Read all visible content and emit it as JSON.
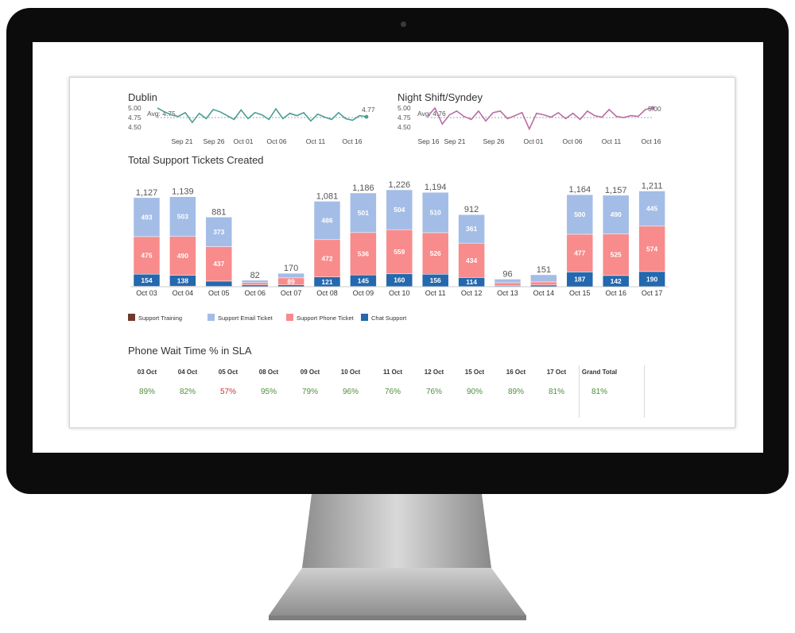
{
  "colors": {
    "training": "#6e3a2c",
    "email": "#a3bde7",
    "phone": "#f88b8b",
    "chat": "#2468ae",
    "spark_dublin": "#4a9d95",
    "spark_sydney": "#b86ea5",
    "good": "#4f8f3f",
    "bad": "#c63a3a"
  },
  "sparklines": [
    {
      "title": "Dublin",
      "avg_label": "Avg: 4.75",
      "last_label": "4.77",
      "yticks": [
        "5.00",
        "4.75",
        "4.50"
      ],
      "x_labels": [
        "Sep 21",
        "Sep 26",
        "Oct 01",
        "Oct 06",
        "Oct 11",
        "Oct 16"
      ]
    },
    {
      "title": "Night Shift/Syndey",
      "avg_label": "Avg: 4.76",
      "last_label": "5.00",
      "yticks": [
        "5.00",
        "4.75",
        "4.50"
      ],
      "x_labels": [
        "Sep 16",
        "Sep 21",
        "Sep 26",
        "Oct 01",
        "Oct 06",
        "Oct 11",
        "Oct 16"
      ]
    }
  ],
  "tickets_title": "Total Support Tickets Created",
  "chart_data": {
    "type": "bar",
    "stacked": true,
    "categories": [
      "Oct 03",
      "Oct 04",
      "Oct 05",
      "Oct 06",
      "Oct 07",
      "Oct 08",
      "Oct 09",
      "Oct 10",
      "Oct 11",
      "Oct 12",
      "Oct 13",
      "Oct 14",
      "Oct 15",
      "Oct 16",
      "Oct 17"
    ],
    "series": [
      {
        "name": "Support Training",
        "values": [
          5,
          8,
          5,
          2,
          2,
          2,
          4,
          3,
          2,
          3,
          1,
          1,
          0,
          0,
          2
        ]
      },
      {
        "name": "Chat Support",
        "values": [
          154,
          138,
          66,
          20,
          21,
          121,
          145,
          160,
          156,
          114,
          10,
          20,
          187,
          142,
          190
        ]
      },
      {
        "name": "Support Phone Ticket",
        "values": [
          475,
          490,
          437,
          30,
          89,
          472,
          536,
          559,
          526,
          434,
          40,
          40,
          477,
          525,
          574
        ]
      },
      {
        "name": "Support Email Ticket",
        "values": [
          493,
          503,
          373,
          30,
          58,
          486,
          501,
          504,
          510,
          361,
          45,
          90,
          500,
          490,
          445
        ]
      }
    ],
    "segment_labels": {
      "Chat Support": [
        "154",
        "138",
        "",
        "",
        "",
        "121",
        "145",
        "160",
        "156",
        "114",
        "",
        "",
        "187",
        "142",
        "190"
      ],
      "Support Phone Ticket": [
        "475",
        "490",
        "437",
        "",
        "89",
        "472",
        "536",
        "559",
        "526",
        "434",
        "",
        "",
        "477",
        "525",
        "574"
      ],
      "Support Email Ticket": [
        "493",
        "503",
        "373",
        "",
        "",
        "486",
        "501",
        "504",
        "510",
        "361",
        "",
        "",
        "500",
        "490",
        "445"
      ]
    },
    "totals": [
      "1,127",
      "1,139",
      "881",
      "82",
      "170",
      "1,081",
      "1,186",
      "1,226",
      "1,194",
      "912",
      "96",
      "151",
      "1,164",
      "1,157",
      "1,211"
    ],
    "total_values": [
      1127,
      1139,
      881,
      82,
      170,
      1081,
      1186,
      1226,
      1194,
      912,
      96,
      151,
      1164,
      1157,
      1211
    ],
    "ylim": [
      0,
      1300
    ],
    "legend": [
      "Support Training",
      "Support Email Ticket",
      "Support Phone Ticket",
      "Chat Support"
    ],
    "legend_position": "bottom-left"
  },
  "sla": {
    "title": "Phone Wait Time % in SLA",
    "headers": [
      "03 Oct",
      "04 Oct",
      "05 Oct",
      "08 Oct",
      "09 Oct",
      "10 Oct",
      "11 Oct",
      "12 Oct",
      "15 Oct",
      "16 Oct",
      "17 Oct",
      "Grand Total"
    ],
    "values": [
      "89%",
      "82%",
      "57%",
      "95%",
      "79%",
      "96%",
      "76%",
      "76%",
      "90%",
      "89%",
      "81%",
      "81%"
    ],
    "bad": [
      false,
      false,
      true,
      false,
      false,
      false,
      false,
      false,
      false,
      false,
      false,
      false
    ]
  }
}
